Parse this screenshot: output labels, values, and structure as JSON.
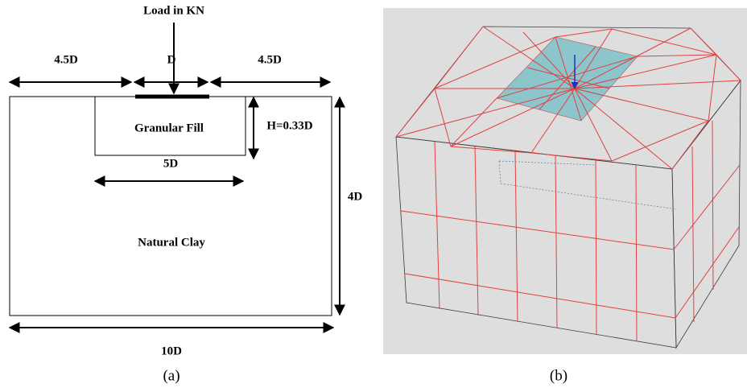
{
  "panel_a": {
    "load_label": "Load in KN",
    "left_width": "4.5D",
    "footing_width": "D",
    "right_width": "4.5D",
    "fill_depth": "H=0.33D",
    "fill_label": "Granular Fill",
    "fill_width": "5D",
    "depth": "4D",
    "clay_label": "Natural Clay",
    "total_width": "10D",
    "caption": "(a)"
  },
  "panel_b": {
    "caption": "(b)"
  }
}
